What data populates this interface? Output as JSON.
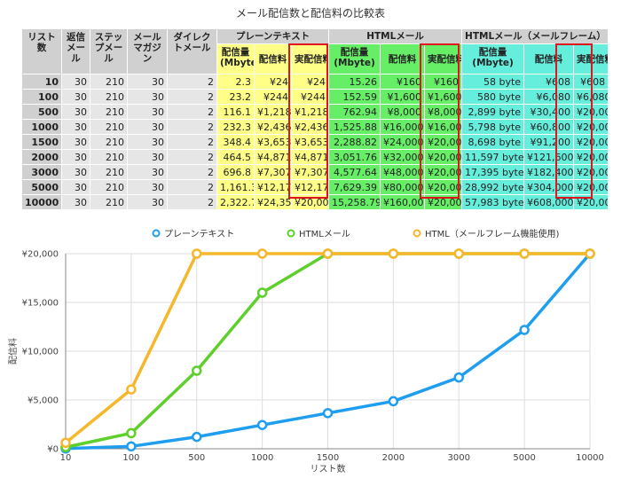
{
  "table": {
    "title": "メール配信数と配信料の比較表",
    "headers": {
      "list": "リスト数",
      "reply": "返信メール",
      "step": "ステップメール",
      "magazine": "メールマガジン",
      "direct": "ダイレクトメール",
      "group_text": "プレーンテキスト",
      "group_html": "HTMLメール",
      "group_frame": "HTMLメール（メールフレーム）",
      "volume": "配信量(Mbyte)",
      "fee": "配信料",
      "actual_fee": "実配信料"
    },
    "rows": [
      {
        "list": "10",
        "reply": "30",
        "step": "210",
        "magazine": "30",
        "direct": "2",
        "t_vol": "2.3",
        "t_fee": "¥24",
        "t_act": "¥24",
        "h_vol": "15.26",
        "h_fee": "¥160",
        "h_act": "¥160",
        "f_vol": "58 byte",
        "f_fee": "¥608",
        "f_act": "¥608"
      },
      {
        "list": "100",
        "reply": "30",
        "step": "210",
        "magazine": "30",
        "direct": "2",
        "t_vol": "23.2",
        "t_fee": "¥244",
        "t_act": "¥244",
        "h_vol": "152.59",
        "h_fee": "¥1,600",
        "h_act": "¥1,600",
        "f_vol": "580 byte",
        "f_fee": "¥6,080",
        "f_act": "¥6,080"
      },
      {
        "list": "500",
        "reply": "30",
        "step": "210",
        "magazine": "30",
        "direct": "2",
        "t_vol": "116.1",
        "t_fee": "¥1,218",
        "t_act": "¥1,218",
        "h_vol": "762.94",
        "h_fee": "¥8,000",
        "h_act": "¥8,000",
        "f_vol": "2,899 byte",
        "f_fee": "¥30,400",
        "f_act": "¥20,000"
      },
      {
        "list": "1000",
        "reply": "30",
        "step": "210",
        "magazine": "30",
        "direct": "2",
        "t_vol": "232.3",
        "t_fee": "¥2,436",
        "t_act": "¥2,436",
        "h_vol": "1,525.88",
        "h_fee": "¥16,000",
        "h_act": "¥16,000",
        "f_vol": "5,798 byte",
        "f_fee": "¥60,800",
        "f_act": "¥20,000"
      },
      {
        "list": "1500",
        "reply": "30",
        "step": "210",
        "magazine": "30",
        "direct": "2",
        "t_vol": "348.4",
        "t_fee": "¥3,653",
        "t_act": "¥3,653",
        "h_vol": "2,288.82",
        "h_fee": "¥24,000",
        "h_act": "¥20,000",
        "f_vol": "8,698 byte",
        "f_fee": "¥91,200",
        "f_act": "¥20,000"
      },
      {
        "list": "2000",
        "reply": "30",
        "step": "210",
        "magazine": "30",
        "direct": "2",
        "t_vol": "464.5",
        "t_fee": "¥4,871",
        "t_act": "¥4,871",
        "h_vol": "3,051.76",
        "h_fee": "¥32,000",
        "h_act": "¥20,000",
        "f_vol": "11,597 byte",
        "f_fee": "¥121,600",
        "f_act": "¥20,000"
      },
      {
        "list": "3000",
        "reply": "30",
        "step": "210",
        "magazine": "30",
        "direct": "2",
        "t_vol": "696.8",
        "t_fee": "¥7,307",
        "t_act": "¥7,307",
        "h_vol": "4,577.64",
        "h_fee": "¥48,000",
        "h_act": "¥20,000",
        "f_vol": "17,395 byte",
        "f_fee": "¥182,400",
        "f_act": "¥20,000"
      },
      {
        "list": "5000",
        "reply": "30",
        "step": "210",
        "magazine": "30",
        "direct": "2",
        "t_vol": "1,161.3",
        "t_fee": "¥12,178",
        "t_act": "¥12,178",
        "h_vol": "7,629.39",
        "h_fee": "¥80,000",
        "h_act": "¥20,000",
        "f_vol": "28,992 byte",
        "f_fee": "¥304,000",
        "f_act": "¥20,000"
      },
      {
        "list": "10000",
        "reply": "30",
        "step": "210",
        "magazine": "30",
        "direct": "2",
        "t_vol": "2,322.7",
        "t_fee": "¥24,355",
        "t_act": "¥20,000",
        "h_vol": "15,258.79",
        "h_fee": "¥160,000",
        "h_act": "¥20,000",
        "f_vol": "57,983 byte",
        "f_fee": "¥608,000",
        "f_act": "¥20,000"
      }
    ],
    "colors": {
      "text": "#ffff88",
      "html": "#66ee66",
      "frame": "#66eedd",
      "highlight": "#e0161f",
      "header": "#d0d0d0",
      "cell": "#e6e6e6"
    }
  },
  "chart_data": {
    "type": "line",
    "categories": [
      "10",
      "100",
      "500",
      "1000",
      "1500",
      "2000",
      "3000",
      "5000",
      "10000"
    ],
    "series": [
      {
        "name": "プレーンテキスト",
        "color": "#1f9ef0",
        "values": [
          24,
          244,
          1218,
          2436,
          3653,
          4871,
          7307,
          12178,
          20000
        ]
      },
      {
        "name": "HTMLメール",
        "color": "#5fcf2c",
        "values": [
          160,
          1600,
          8000,
          16000,
          20000,
          20000,
          20000,
          20000,
          20000
        ]
      },
      {
        "name": "HTML（メールフレーム機能使用)",
        "color": "#f6b72b",
        "values": [
          608,
          6080,
          20000,
          20000,
          20000,
          20000,
          20000,
          20000,
          20000
        ]
      }
    ],
    "xlabel": "リスト数",
    "ylabel": "配信料",
    "ylim": [
      0,
      20000
    ],
    "yticks": [
      "¥0",
      "¥5,000",
      "¥10,000",
      "¥15,000",
      "¥20,000"
    ],
    "grid": true,
    "legend": "top-center"
  }
}
